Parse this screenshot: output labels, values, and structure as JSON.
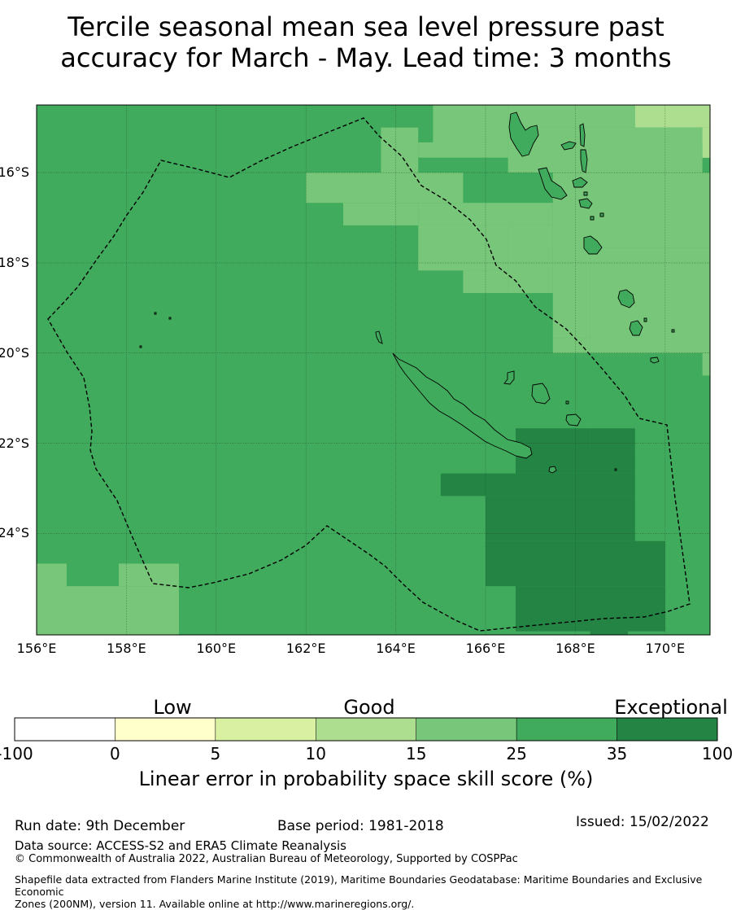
{
  "title_line1": "Tercile seasonal mean sea level pressure past",
  "title_line2": "accuracy for March - May. Lead time: 3 months",
  "map": {
    "lon_range": [
      156,
      171
    ],
    "lat_range": [
      -26.25,
      -14.5
    ],
    "lat_ticks": [
      "16°S",
      "18°S",
      "20°S",
      "22°S",
      "24°S"
    ],
    "lon_ticks": [
      "156°E",
      "158°E",
      "160°E",
      "162°E",
      "164°E",
      "166°E",
      "168°E",
      "170°E"
    ],
    "grid": true,
    "colors": {
      "score_15_25": "#78c679",
      "score_25_35": "#41ab5d",
      "score_35_100": "#238443",
      "score_10_15": "#addd8e"
    },
    "background_category": "25-35",
    "cells": [
      {
        "lon": [
          164.83,
          166.5
        ],
        "lat": [
          -14.5,
          -15.33
        ],
        "category": "15-25"
      },
      {
        "lon": [
          166.5,
          169.33
        ],
        "lat": [
          -14.5,
          -15.0
        ],
        "category": "15-25"
      },
      {
        "lon": [
          169.33,
          171.0
        ],
        "lat": [
          -14.5,
          -15.0
        ],
        "category": "10-15"
      },
      {
        "lon": [
          166.5,
          171.0
        ],
        "lat": [
          -15.0,
          -15.33
        ],
        "category": "15-25"
      },
      {
        "lon": [
          170.83,
          171.0
        ],
        "lat": [
          -15.0,
          -15.67
        ],
        "category": "10-15"
      },
      {
        "lon": [
          166.5,
          170.83
        ],
        "lat": [
          -15.33,
          -16.0
        ],
        "category": "15-25"
      },
      {
        "lon": [
          163.67,
          164.5
        ],
        "lat": [
          -15.0,
          -15.33
        ],
        "category": "15-25"
      },
      {
        "lon": [
          164.5,
          166.5
        ],
        "lat": [
          -15.33,
          -15.67
        ],
        "category": "15-25"
      },
      {
        "lon": [
          164.5,
          166.5
        ],
        "lat": [
          -15.67,
          -16.0
        ],
        "category": "25-35"
      },
      {
        "lon": [
          163.67,
          164.5
        ],
        "lat": [
          -15.33,
          -16.0
        ],
        "category": "15-25"
      },
      {
        "lon": [
          162.0,
          165.5
        ],
        "lat": [
          -16.0,
          -16.67
        ],
        "category": "15-25"
      },
      {
        "lon": [
          162.83,
          164.5
        ],
        "lat": [
          -16.67,
          -17.17
        ],
        "category": "15-25"
      },
      {
        "lon": [
          164.5,
          167.5
        ],
        "lat": [
          -16.67,
          -17.17
        ],
        "category": "15-25"
      },
      {
        "lon": [
          167.5,
          171.0
        ],
        "lat": [
          -16.0,
          -17.67
        ],
        "category": "15-25"
      },
      {
        "lon": [
          168.33,
          171.0
        ],
        "lat": [
          -17.67,
          -20.0
        ],
        "category": "15-25"
      },
      {
        "lon": [
          167.5,
          168.33
        ],
        "lat": [
          -17.17,
          -19.67
        ],
        "category": "15-25"
      },
      {
        "lon": [
          164.5,
          166.5
        ],
        "lat": [
          -17.17,
          -18.17
        ],
        "category": "15-25"
      },
      {
        "lon": [
          165.5,
          166.5
        ],
        "lat": [
          -18.17,
          -18.67
        ],
        "category": "15-25"
      },
      {
        "lon": [
          166.5,
          167.5
        ],
        "lat": [
          -17.17,
          -18.67
        ],
        "category": "15-25"
      },
      {
        "lon": [
          167.5,
          168.33
        ],
        "lat": [
          -19.67,
          -20.0
        ],
        "category": "15-25"
      },
      {
        "lon": [
          170.83,
          171.0
        ],
        "lat": [
          -20.0,
          -20.5
        ],
        "category": "15-25"
      },
      {
        "lon": [
          166.67,
          168.33
        ],
        "lat": [
          -21.67,
          -22.17
        ],
        "category": "35-100"
      },
      {
        "lon": [
          168.33,
          169.33
        ],
        "lat": [
          -21.67,
          -22.17
        ],
        "category": "35-100"
      },
      {
        "lon": [
          166.67,
          169.33
        ],
        "lat": [
          -22.17,
          -22.67
        ],
        "category": "35-100"
      },
      {
        "lon": [
          165.0,
          169.33
        ],
        "lat": [
          -22.67,
          -23.17
        ],
        "category": "35-100"
      },
      {
        "lon": [
          166.0,
          169.33
        ],
        "lat": [
          -23.17,
          -24.17
        ],
        "category": "35-100"
      },
      {
        "lon": [
          166.0,
          170.0
        ],
        "lat": [
          -24.17,
          -25.17
        ],
        "category": "35-100"
      },
      {
        "lon": [
          166.67,
          170.0
        ],
        "lat": [
          -25.17,
          -26.17
        ],
        "category": "35-100"
      },
      {
        "lon": [
          168.33,
          169.17
        ],
        "lat": [
          -26.17,
          -26.33
        ],
        "category": "35-100"
      },
      {
        "lon": [
          156.0,
          156.67
        ],
        "lat": [
          -24.67,
          -26.33
        ],
        "category": "15-25"
      },
      {
        "lon": [
          156.67,
          159.17
        ],
        "lat": [
          -25.17,
          -26.33
        ],
        "category": "15-25"
      },
      {
        "lon": [
          157.83,
          159.17
        ],
        "lat": [
          -24.67,
          -25.17
        ],
        "category": "15-25"
      }
    ]
  },
  "colorbar": {
    "categories": [
      "Low",
      "Good",
      "Exceptional"
    ],
    "ticks": [
      "-100",
      "0",
      "5",
      "10",
      "15",
      "25",
      "35",
      "100"
    ],
    "segment_colors": [
      "#ffffff",
      "#ffffcc",
      "#d9f0a3",
      "#addd8e",
      "#78c679",
      "#41ab5d",
      "#238443"
    ],
    "xlabel": "Linear error in probability space skill score (%)"
  },
  "footer": {
    "run_date": "Run date: 9th December",
    "base_period": "Base period: 1981-2018",
    "issued": "Issued: 15/02/2022",
    "data_source": "Data source: ACCESS-S2 and ERA5 Climate Reanalysis",
    "copyright": "© Commonwealth of Australia 2022, Australian Bureau of Meteorology, Supported by COSPPac",
    "shapefile_line1": "Shapefile data extracted from Flanders Marine Institute (2019), Maritime Boundaries Geodatabase: Maritime Boundaries and Exclusive Economic",
    "shapefile_line2": "Zones (200NM), version 11. Available online at http://www.marineregions.org/."
  }
}
